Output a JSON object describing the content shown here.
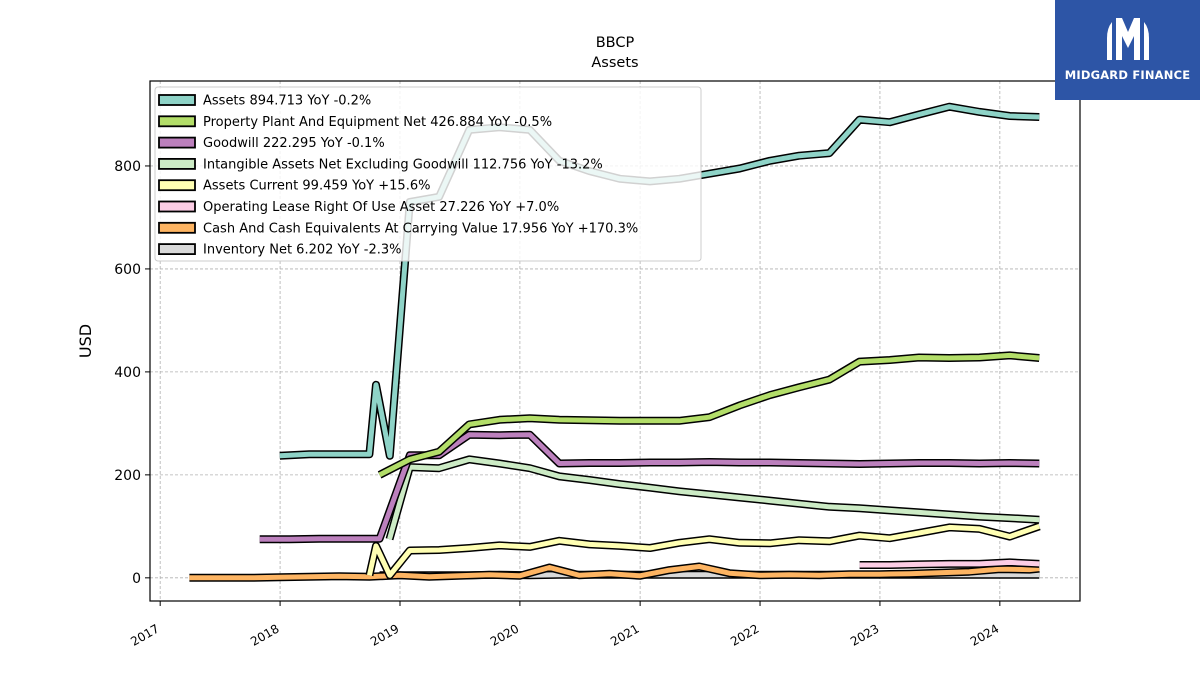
{
  "logo": {
    "text": "MIDGARD FINANCE",
    "bg_color": "#2d55a6"
  },
  "chart_data": {
    "type": "line",
    "title": "BBCP",
    "subtitle": "Assets",
    "ylabel": "USD",
    "xlabel": "",
    "xlim": [
      "2016-12-01",
      "2024-09-01"
    ],
    "ylim": [
      -45,
      965
    ],
    "xticks": [
      "2017",
      "2018",
      "2019",
      "2020",
      "2021",
      "2022",
      "2023",
      "2024"
    ],
    "yticks": [
      0,
      200,
      400,
      600,
      800
    ],
    "grid": true,
    "legend_position": "top-left",
    "series": [
      {
        "name": "Assets",
        "legend": "Assets  894.713 YoY -0.2%",
        "color": "#8ed3c7",
        "points": [
          [
            "2017-12-31",
            237
          ],
          [
            "2018-03-31",
            240
          ],
          [
            "2018-06-30",
            240
          ],
          [
            "2018-09-30",
            240
          ],
          [
            "2018-10-20",
            375
          ],
          [
            "2018-12-01",
            237
          ],
          [
            "2019-01-31",
            730
          ],
          [
            "2019-04-30",
            740
          ],
          [
            "2019-07-31",
            870
          ],
          [
            "2019-10-31",
            875
          ],
          [
            "2020-01-31",
            870
          ],
          [
            "2020-04-30",
            810
          ],
          [
            "2020-07-31",
            790
          ],
          [
            "2020-10-31",
            775
          ],
          [
            "2021-01-31",
            770
          ],
          [
            "2021-04-30",
            775
          ],
          [
            "2021-07-31",
            785
          ],
          [
            "2021-10-31",
            795
          ],
          [
            "2022-01-31",
            810
          ],
          [
            "2022-04-30",
            820
          ],
          [
            "2022-07-31",
            825
          ],
          [
            "2022-10-31",
            890
          ],
          [
            "2023-01-31",
            885
          ],
          [
            "2023-04-30",
            900
          ],
          [
            "2023-07-31",
            915
          ],
          [
            "2023-10-31",
            905
          ],
          [
            "2024-01-31",
            897
          ],
          [
            "2024-04-30",
            895
          ]
        ]
      },
      {
        "name": "Property Plant And Equipment Net",
        "legend": "Property Plant And Equipment Net  426.884 YoY -0.5%",
        "color": "#b3de69",
        "points": [
          [
            "2018-10-31",
            200
          ],
          [
            "2019-01-31",
            230
          ],
          [
            "2019-04-30",
            245
          ],
          [
            "2019-07-31",
            298
          ],
          [
            "2019-10-31",
            307
          ],
          [
            "2020-01-31",
            310
          ],
          [
            "2020-04-30",
            307
          ],
          [
            "2020-07-31",
            306
          ],
          [
            "2020-10-31",
            305
          ],
          [
            "2021-01-31",
            305
          ],
          [
            "2021-04-30",
            305
          ],
          [
            "2021-07-31",
            312
          ],
          [
            "2021-10-31",
            335
          ],
          [
            "2022-01-31",
            355
          ],
          [
            "2022-04-30",
            370
          ],
          [
            "2022-07-31",
            385
          ],
          [
            "2022-10-31",
            420
          ],
          [
            "2023-01-31",
            423
          ],
          [
            "2023-04-30",
            428
          ],
          [
            "2023-07-31",
            427
          ],
          [
            "2023-10-31",
            428
          ],
          [
            "2024-01-31",
            432
          ],
          [
            "2024-04-30",
            427
          ]
        ]
      },
      {
        "name": "Goodwill",
        "legend": "Goodwill  222.295 YoY -0.1%",
        "color": "#bc80bd",
        "points": [
          [
            "2017-10-31",
            75
          ],
          [
            "2018-01-31",
            75
          ],
          [
            "2018-04-30",
            76
          ],
          [
            "2018-07-31",
            76
          ],
          [
            "2018-10-31",
            76
          ],
          [
            "2019-01-31",
            238
          ],
          [
            "2019-04-30",
            238
          ],
          [
            "2019-07-31",
            278
          ],
          [
            "2019-10-31",
            277
          ],
          [
            "2020-01-31",
            278
          ],
          [
            "2020-04-30",
            222
          ],
          [
            "2020-07-31",
            223
          ],
          [
            "2020-10-31",
            223
          ],
          [
            "2021-01-31",
            224
          ],
          [
            "2021-04-30",
            224
          ],
          [
            "2021-07-31",
            225
          ],
          [
            "2021-10-31",
            224
          ],
          [
            "2022-01-31",
            224
          ],
          [
            "2022-04-30",
            223
          ],
          [
            "2022-07-31",
            222
          ],
          [
            "2022-10-31",
            221
          ],
          [
            "2023-01-31",
            222
          ],
          [
            "2023-04-30",
            223
          ],
          [
            "2023-07-31",
            223
          ],
          [
            "2023-10-31",
            222
          ],
          [
            "2024-01-31",
            223
          ],
          [
            "2024-04-30",
            222
          ]
        ]
      },
      {
        "name": "Intangible Assets Net Excluding Goodwill",
        "legend": "Intangible Assets Net Excluding Goodwill  112.756 YoY -13.2%",
        "color": "#ccebc5",
        "points": [
          [
            "2018-11-30",
            75
          ],
          [
            "2019-01-31",
            215
          ],
          [
            "2019-04-30",
            213
          ],
          [
            "2019-07-31",
            230
          ],
          [
            "2019-10-31",
            222
          ],
          [
            "2020-01-31",
            213
          ],
          [
            "2020-04-30",
            197
          ],
          [
            "2020-07-31",
            190
          ],
          [
            "2020-10-31",
            182
          ],
          [
            "2021-01-31",
            175
          ],
          [
            "2021-04-30",
            168
          ],
          [
            "2021-07-31",
            162
          ],
          [
            "2021-10-31",
            156
          ],
          [
            "2022-01-31",
            150
          ],
          [
            "2022-04-30",
            144
          ],
          [
            "2022-07-31",
            138
          ],
          [
            "2022-10-31",
            135
          ],
          [
            "2023-01-31",
            131
          ],
          [
            "2023-04-30",
            127
          ],
          [
            "2023-07-31",
            123
          ],
          [
            "2023-10-31",
            119
          ],
          [
            "2024-01-31",
            116
          ],
          [
            "2024-04-30",
            113
          ]
        ]
      },
      {
        "name": "Assets Current",
        "legend": "Assets Current  99.459 YoY +15.6%",
        "color": "#ffffb3",
        "points": [
          [
            "2018-09-30",
            5
          ],
          [
            "2018-10-20",
            62
          ],
          [
            "2018-12-01",
            5
          ],
          [
            "2019-01-31",
            53
          ],
          [
            "2019-04-30",
            54
          ],
          [
            "2019-07-31",
            58
          ],
          [
            "2019-10-31",
            63
          ],
          [
            "2020-01-31",
            60
          ],
          [
            "2020-04-30",
            72
          ],
          [
            "2020-07-31",
            65
          ],
          [
            "2020-10-31",
            62
          ],
          [
            "2021-01-31",
            58
          ],
          [
            "2021-04-30",
            68
          ],
          [
            "2021-07-31",
            75
          ],
          [
            "2021-10-31",
            68
          ],
          [
            "2022-01-31",
            67
          ],
          [
            "2022-04-30",
            73
          ],
          [
            "2022-07-31",
            71
          ],
          [
            "2022-10-31",
            82
          ],
          [
            "2023-01-31",
            77
          ],
          [
            "2023-04-30",
            87
          ],
          [
            "2023-07-31",
            98
          ],
          [
            "2023-10-31",
            95
          ],
          [
            "2024-01-31",
            80
          ],
          [
            "2024-04-30",
            100
          ]
        ]
      },
      {
        "name": "Operating Lease Right Of Use Asset",
        "legend": "Operating Lease Right Of Use Asset  27.226 YoY +7.0%",
        "color": "#fccde5",
        "points": [
          [
            "2022-10-31",
            25
          ],
          [
            "2023-01-31",
            25
          ],
          [
            "2023-04-30",
            26
          ],
          [
            "2023-07-31",
            27
          ],
          [
            "2023-10-31",
            27
          ],
          [
            "2024-01-31",
            30
          ],
          [
            "2024-04-30",
            27
          ]
        ]
      },
      {
        "name": "Cash And Cash Equivalents At Carrying Value",
        "legend": "Cash And Cash Equivalents At Carrying Value  17.956 YoY +170.3%",
        "color": "#fdb462",
        "points": [
          [
            "2017-03-31",
            0
          ],
          [
            "2017-06-30",
            0
          ],
          [
            "2017-09-30",
            0
          ],
          [
            "2017-12-31",
            1
          ],
          [
            "2018-03-31",
            2
          ],
          [
            "2018-06-30",
            3
          ],
          [
            "2018-09-30",
            2
          ],
          [
            "2018-12-31",
            5
          ],
          [
            "2019-03-31",
            2
          ],
          [
            "2019-06-30",
            4
          ],
          [
            "2019-09-30",
            6
          ],
          [
            "2019-12-31",
            4
          ],
          [
            "2020-03-31",
            20
          ],
          [
            "2020-06-30",
            5
          ],
          [
            "2020-09-30",
            8
          ],
          [
            "2020-12-31",
            4
          ],
          [
            "2021-03-31",
            15
          ],
          [
            "2021-06-30",
            22
          ],
          [
            "2021-09-30",
            9
          ],
          [
            "2021-12-31",
            5
          ],
          [
            "2022-03-31",
            6
          ],
          [
            "2022-06-30",
            5
          ],
          [
            "2022-09-30",
            7
          ],
          [
            "2022-12-31",
            7
          ],
          [
            "2023-03-31",
            8
          ],
          [
            "2023-06-30",
            10
          ],
          [
            "2023-09-30",
            12
          ],
          [
            "2023-12-31",
            17
          ],
          [
            "2024-03-31",
            16
          ],
          [
            "2024-04-30",
            18
          ]
        ]
      },
      {
        "name": "Inventory Net",
        "legend": "Inventory Net  6.202 YoY -2.3%",
        "color": "#d9d9d9",
        "points": [
          [
            "2018-10-31",
            5
          ],
          [
            "2019-01-31",
            5
          ],
          [
            "2019-04-30",
            5
          ],
          [
            "2019-07-31",
            5
          ],
          [
            "2019-10-31",
            6
          ],
          [
            "2020-01-31",
            5
          ],
          [
            "2020-04-30",
            6
          ],
          [
            "2020-07-31",
            6
          ],
          [
            "2020-10-31",
            6
          ],
          [
            "2021-01-31",
            6
          ],
          [
            "2021-04-30",
            6
          ],
          [
            "2021-07-31",
            6
          ],
          [
            "2021-10-31",
            6
          ],
          [
            "2022-01-31",
            6
          ],
          [
            "2022-04-30",
            6
          ],
          [
            "2022-07-31",
            6
          ],
          [
            "2022-10-31",
            6
          ],
          [
            "2023-01-31",
            6
          ],
          [
            "2023-04-30",
            6
          ],
          [
            "2023-07-31",
            6
          ],
          [
            "2023-10-31",
            6
          ],
          [
            "2024-01-31",
            6
          ],
          [
            "2024-04-30",
            6
          ]
        ]
      }
    ]
  }
}
